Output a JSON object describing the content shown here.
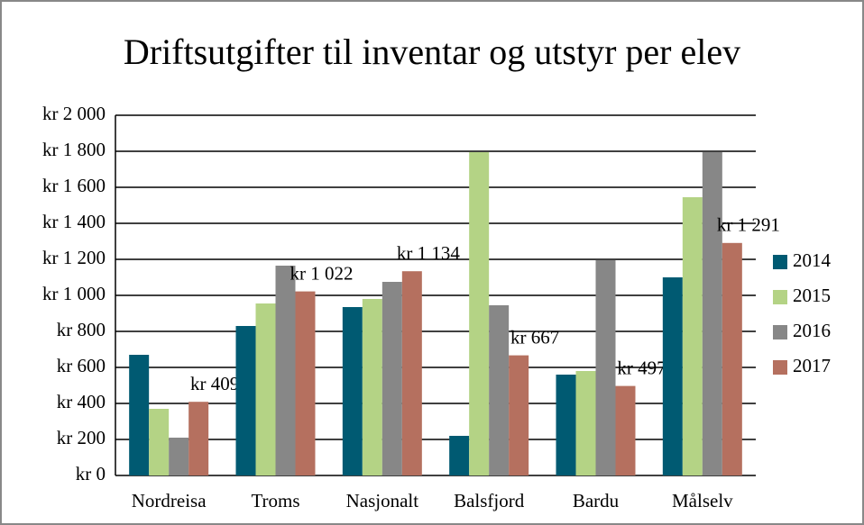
{
  "chart_data": {
    "type": "bar",
    "title": "Driftsutgifter til inventar og utstyr per elev",
    "categories": [
      "Nordreisa",
      "Troms",
      "Nasjonalt",
      "Balsfjord",
      "Bardu",
      "Målselv"
    ],
    "series": [
      {
        "name": "2014",
        "color": "#005a72",
        "values": [
          670,
          830,
          935,
          220,
          560,
          1100
        ]
      },
      {
        "name": "2015",
        "color": "#b4d385",
        "values": [
          370,
          955,
          980,
          1795,
          580,
          1545
        ]
      },
      {
        "name": "2016",
        "color": "#878787",
        "values": [
          210,
          1165,
          1075,
          945,
          1195,
          1795
        ]
      },
      {
        "name": "2017",
        "color": "#b5705f",
        "values": [
          409,
          1022,
          1134,
          667,
          497,
          1291
        ],
        "value_labels": [
          "kr 409",
          "kr 1 022",
          "kr 1 134",
          "kr 667",
          "kr 497",
          "kr 1 291"
        ]
      }
    ],
    "ylim": [
      0,
      2000
    ],
    "yticks": [
      {
        "value": 0,
        "label": "kr 0"
      },
      {
        "value": 200,
        "label": "kr 200"
      },
      {
        "value": 400,
        "label": "kr 400"
      },
      {
        "value": 600,
        "label": "kr 600"
      },
      {
        "value": 800,
        "label": "kr 800"
      },
      {
        "value": 1000,
        "label": "kr 1 000"
      },
      {
        "value": 1200,
        "label": "kr 1 200"
      },
      {
        "value": 1400,
        "label": "kr 1 400"
      },
      {
        "value": 1600,
        "label": "kr 1 600"
      },
      {
        "value": 1800,
        "label": "kr 1 800"
      },
      {
        "value": 2000,
        "label": "kr 2 000"
      }
    ],
    "grid": true,
    "legend": "right"
  }
}
